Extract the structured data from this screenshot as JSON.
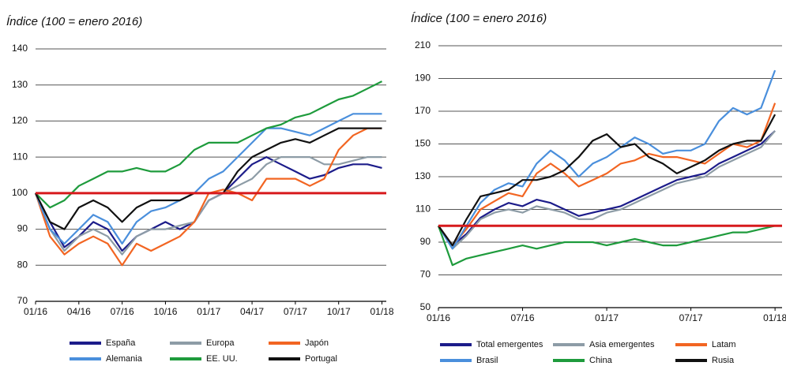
{
  "chart_data": [
    {
      "type": "line",
      "title": "Índice (100 = enero 2016)",
      "x": [
        0,
        1,
        2,
        3,
        4,
        5,
        6,
        7,
        8,
        9,
        10,
        11,
        12,
        13,
        14,
        15,
        16,
        17,
        18,
        19,
        20,
        21,
        22,
        23,
        24
      ],
      "xlim": [
        0,
        24.3
      ],
      "xticks": [
        {
          "value": 0,
          "label": "01/16"
        },
        {
          "value": 3,
          "label": "04/16"
        },
        {
          "value": 6,
          "label": "07/16"
        },
        {
          "value": 9,
          "label": "10/16"
        },
        {
          "value": 12,
          "label": "01/17"
        },
        {
          "value": 15,
          "label": "04/17"
        },
        {
          "value": 18,
          "label": "07/17"
        },
        {
          "value": 21,
          "label": "10/17"
        },
        {
          "value": 24,
          "label": "01/18"
        }
      ],
      "ylim": [
        70,
        140
      ],
      "yticks": [
        70,
        80,
        90,
        100,
        110,
        120,
        130,
        140
      ],
      "grid": true,
      "hline": {
        "value": 100,
        "color": "#d7191c"
      },
      "series": [
        {
          "name": "España",
          "color": "#1c1c8a",
          "values": [
            100,
            92,
            85,
            88,
            92,
            90,
            84,
            88,
            90,
            92,
            90,
            92,
            98,
            100,
            104,
            108,
            110,
            108,
            106,
            104,
            105,
            107,
            108,
            108,
            107
          ]
        },
        {
          "name": "Europa",
          "color": "#8d9ca6",
          "values": [
            100,
            90,
            84,
            88,
            90,
            88,
            83,
            88,
            90,
            90,
            91,
            92,
            98,
            100,
            102,
            104,
            108,
            110,
            110,
            110,
            108,
            108,
            109,
            110,
            110
          ]
        },
        {
          "name": "Japón",
          "color": "#f26522",
          "values": [
            100,
            88,
            83,
            86,
            88,
            86,
            80,
            86,
            84,
            86,
            88,
            92,
            100,
            101,
            100,
            98,
            104,
            104,
            104,
            102,
            104,
            112,
            116,
            118,
            118
          ]
        },
        {
          "name": "Alemania",
          "color": "#4a8fdc",
          "values": [
            100,
            90,
            86,
            90,
            94,
            92,
            86,
            92,
            95,
            96,
            98,
            100,
            104,
            106,
            110,
            114,
            118,
            118,
            117,
            116,
            118,
            120,
            122,
            122,
            122
          ]
        },
        {
          "name": "EE. UU.",
          "color": "#1e9b3c",
          "values": [
            100,
            96,
            98,
            102,
            104,
            106,
            106,
            107,
            106,
            106,
            108,
            112,
            114,
            114,
            114,
            116,
            118,
            119,
            121,
            122,
            124,
            126,
            127,
            129,
            131
          ]
        },
        {
          "name": "Portugal",
          "color": "#111111",
          "values": [
            100,
            92,
            90,
            96,
            98,
            96,
            92,
            96,
            98,
            98,
            98,
            100,
            100,
            100,
            106,
            110,
            112,
            114,
            115,
            114,
            116,
            118,
            118,
            118,
            118
          ]
        }
      ]
    },
    {
      "type": "line",
      "title": "Índice (100 = enero 2016)",
      "x": [
        0,
        1,
        2,
        3,
        4,
        5,
        6,
        7,
        8,
        9,
        10,
        11,
        12,
        13,
        14,
        15,
        16,
        17,
        18,
        19,
        20,
        21,
        22,
        23,
        24
      ],
      "xlim": [
        0,
        24.5
      ],
      "xticks": [
        {
          "value": 0,
          "label": "01/16"
        },
        {
          "value": 6,
          "label": "07/16"
        },
        {
          "value": 12,
          "label": "01/17"
        },
        {
          "value": 18,
          "label": "07/17"
        },
        {
          "value": 24,
          "label": "01/18"
        }
      ],
      "ylim": [
        50,
        210
      ],
      "yticks": [
        50,
        70,
        90,
        110,
        130,
        150,
        170,
        190,
        210
      ],
      "grid": true,
      "hline": {
        "value": 100,
        "color": "#d7191c"
      },
      "series": [
        {
          "name": "Total emergentes",
          "color": "#1c1c8a",
          "values": [
            100,
            88,
            95,
            105,
            110,
            114,
            112,
            116,
            114,
            110,
            106,
            108,
            110,
            112,
            116,
            120,
            124,
            128,
            130,
            132,
            138,
            142,
            146,
            150,
            158
          ]
        },
        {
          "name": "Asia emergentes",
          "color": "#8d9ca6",
          "values": [
            100,
            86,
            94,
            104,
            108,
            110,
            108,
            112,
            110,
            108,
            104,
            104,
            108,
            110,
            114,
            118,
            122,
            126,
            128,
            130,
            136,
            140,
            144,
            148,
            158
          ]
        },
        {
          "name": "Latam",
          "color": "#f26522",
          "values": [
            100,
            88,
            98,
            110,
            115,
            120,
            118,
            132,
            138,
            132,
            124,
            128,
            132,
            138,
            140,
            144,
            142,
            142,
            140,
            138,
            144,
            150,
            148,
            152,
            175
          ]
        },
        {
          "name": "Brasil",
          "color": "#4a8fdc",
          "values": [
            100,
            86,
            100,
            114,
            122,
            126,
            124,
            138,
            146,
            140,
            130,
            138,
            142,
            148,
            154,
            150,
            144,
            146,
            146,
            150,
            164,
            172,
            168,
            172,
            195
          ]
        },
        {
          "name": "China",
          "color": "#1e9b3c",
          "values": [
            100,
            76,
            80,
            82,
            84,
            86,
            88,
            86,
            88,
            90,
            90,
            90,
            88,
            90,
            92,
            90,
            88,
            88,
            90,
            92,
            94,
            96,
            96,
            98,
            100
          ]
        },
        {
          "name": "Rusia",
          "color": "#111111",
          "values": [
            100,
            88,
            104,
            118,
            120,
            122,
            128,
            128,
            130,
            134,
            142,
            152,
            156,
            148,
            150,
            142,
            138,
            132,
            136,
            140,
            146,
            150,
            152,
            152,
            168
          ]
        }
      ]
    }
  ]
}
